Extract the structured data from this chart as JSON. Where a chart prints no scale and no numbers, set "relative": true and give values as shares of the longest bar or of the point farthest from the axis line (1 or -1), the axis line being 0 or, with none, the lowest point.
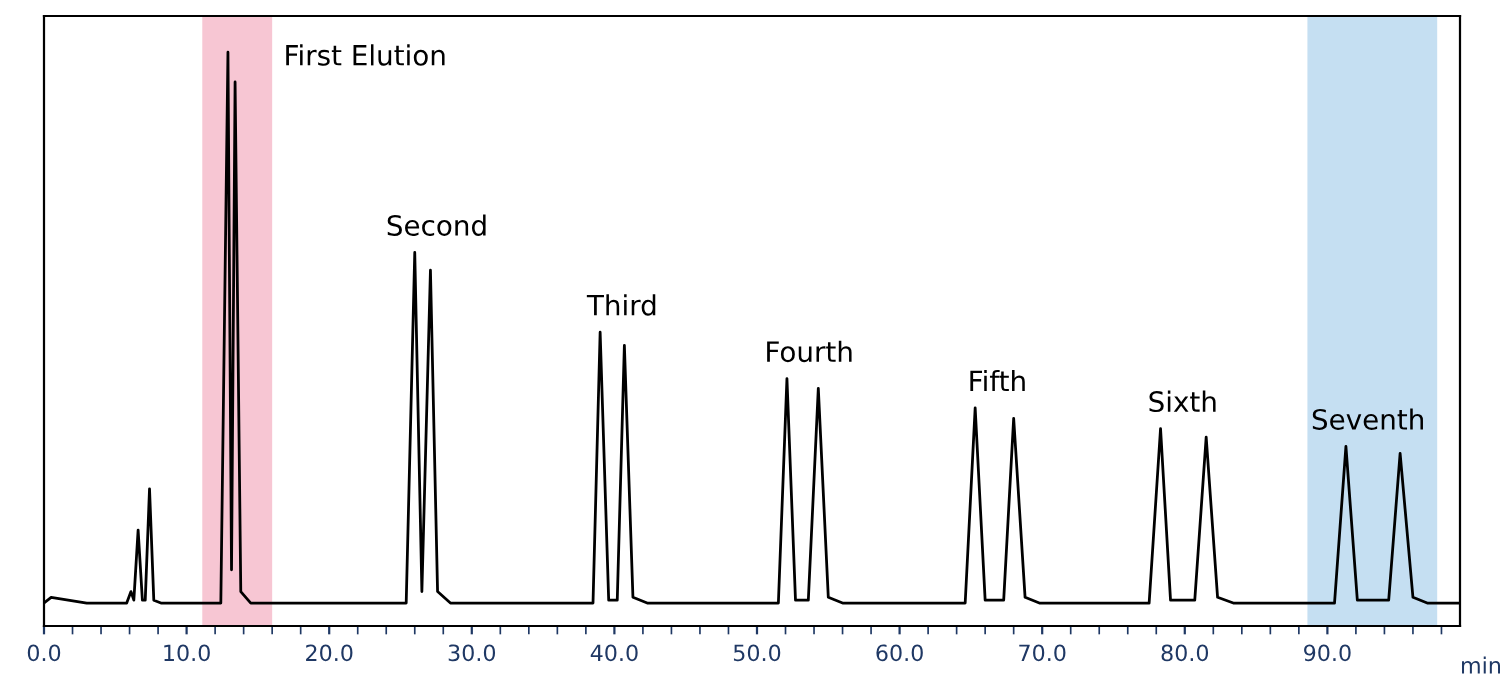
{
  "chart_data": {
    "type": "line",
    "relative": true,
    "xlabel": "min",
    "xlim": [
      0,
      99.3
    ],
    "xticks": [
      {
        "value": 0,
        "label": "0.0"
      },
      {
        "value": 2,
        "label": null
      },
      {
        "value": 4,
        "label": null
      },
      {
        "value": 6,
        "label": null
      },
      {
        "value": 8,
        "label": null
      },
      {
        "value": 10,
        "label": "10.0"
      },
      {
        "value": 12,
        "label": null
      },
      {
        "value": 14,
        "label": null
      },
      {
        "value": 16,
        "label": null
      },
      {
        "value": 18,
        "label": null
      },
      {
        "value": 20,
        "label": "20.0"
      },
      {
        "value": 22,
        "label": null
      },
      {
        "value": 24,
        "label": null
      },
      {
        "value": 26,
        "label": null
      },
      {
        "value": 28,
        "label": null
      },
      {
        "value": 30,
        "label": "30.0"
      },
      {
        "value": 32,
        "label": null
      },
      {
        "value": 34,
        "label": null
      },
      {
        "value": 36,
        "label": null
      },
      {
        "value": 38,
        "label": null
      },
      {
        "value": 40,
        "label": "40.0"
      },
      {
        "value": 42,
        "label": null
      },
      {
        "value": 44,
        "label": null
      },
      {
        "value": 46,
        "label": null
      },
      {
        "value": 48,
        "label": null
      },
      {
        "value": 50,
        "label": "50.0"
      },
      {
        "value": 52,
        "label": null
      },
      {
        "value": 54,
        "label": null
      },
      {
        "value": 56,
        "label": null
      },
      {
        "value": 58,
        "label": null
      },
      {
        "value": 60,
        "label": "60.0"
      },
      {
        "value": 62,
        "label": null
      },
      {
        "value": 64,
        "label": null
      },
      {
        "value": 66,
        "label": null
      },
      {
        "value": 68,
        "label": null
      },
      {
        "value": 70,
        "label": "70.0"
      },
      {
        "value": 72,
        "label": null
      },
      {
        "value": 74,
        "label": null
      },
      {
        "value": 76,
        "label": null
      },
      {
        "value": 78,
        "label": null
      },
      {
        "value": 80,
        "label": "80.0"
      },
      {
        "value": 82,
        "label": null
      },
      {
        "value": 84,
        "label": null
      },
      {
        "value": 86,
        "label": null
      },
      {
        "value": 88,
        "label": null
      },
      {
        "value": 90,
        "label": "90.0"
      },
      {
        "value": 92,
        "label": null
      },
      {
        "value": 94,
        "label": null
      },
      {
        "value": 96,
        "label": null
      },
      {
        "value": 98,
        "label": null
      }
    ],
    "tick_labels": "x",
    "grid": false,
    "legend": false,
    "marker": "none",
    "line_style": "solid",
    "series": [
      {
        "color": "#000000",
        "x": [
          0,
          0.5,
          3,
          5.8,
          6.1,
          6.3,
          6.6,
          6.9,
          7.1,
          7.4,
          7.7,
          8.2,
          11,
          12.4,
          12.9,
          13.15,
          13.4,
          13.8,
          14.5,
          25.4,
          26.0,
          26.5,
          27.1,
          27.6,
          28.5,
          38.5,
          39.0,
          39.6,
          40.2,
          40.7,
          41.3,
          42.3,
          51.5,
          52.1,
          52.7,
          53.6,
          54.3,
          55.0,
          56.0,
          64.6,
          65.3,
          66.0,
          67.3,
          68.0,
          68.8,
          69.8,
          77.5,
          78.3,
          79.0,
          80.7,
          81.5,
          82.3,
          83.4,
          90.5,
          91.3,
          92.1,
          94.3,
          95.1,
          96.0,
          97.0,
          99.3
        ],
        "values": [
          0.04,
          0.05,
          0.04,
          0.04,
          0.06,
          0.045,
          0.167,
          0.045,
          0.045,
          0.239,
          0.045,
          0.04,
          0.04,
          0.04,
          1.0,
          0.098,
          0.948,
          0.06,
          0.04,
          0.04,
          0.651,
          0.06,
          0.62,
          0.06,
          0.04,
          0.04,
          0.512,
          0.045,
          0.045,
          0.489,
          0.05,
          0.04,
          0.04,
          0.431,
          0.045,
          0.045,
          0.414,
          0.05,
          0.04,
          0.04,
          0.38,
          0.045,
          0.045,
          0.362,
          0.05,
          0.04,
          0.04,
          0.344,
          0.045,
          0.045,
          0.329,
          0.05,
          0.04,
          0.04,
          0.313,
          0.045,
          0.045,
          0.301,
          0.05,
          0.04,
          0.04
        ]
      }
    ],
    "bands": [
      {
        "axis": "x",
        "from": 11.1,
        "to": 16.0,
        "color": "#f7c6d3"
      },
      {
        "axis": "x",
        "from": 88.6,
        "to": 97.7,
        "color": "#c5dff2"
      }
    ],
    "annotations": [
      {
        "text": "First Elution",
        "x": 12.9,
        "y": 1.0
      },
      {
        "text": "Second",
        "x": 26.0,
        "y": 0.651
      },
      {
        "text": "Third",
        "x": 39.0,
        "y": 0.512
      },
      {
        "text": "Fourth",
        "x": 52.1,
        "y": 0.431
      },
      {
        "text": "Fifth",
        "x": 65.3,
        "y": 0.38
      },
      {
        "text": "Sixth",
        "x": 78.3,
        "y": 0.344
      },
      {
        "text": "Seventh",
        "x": 91.3,
        "y": 0.313
      }
    ]
  }
}
